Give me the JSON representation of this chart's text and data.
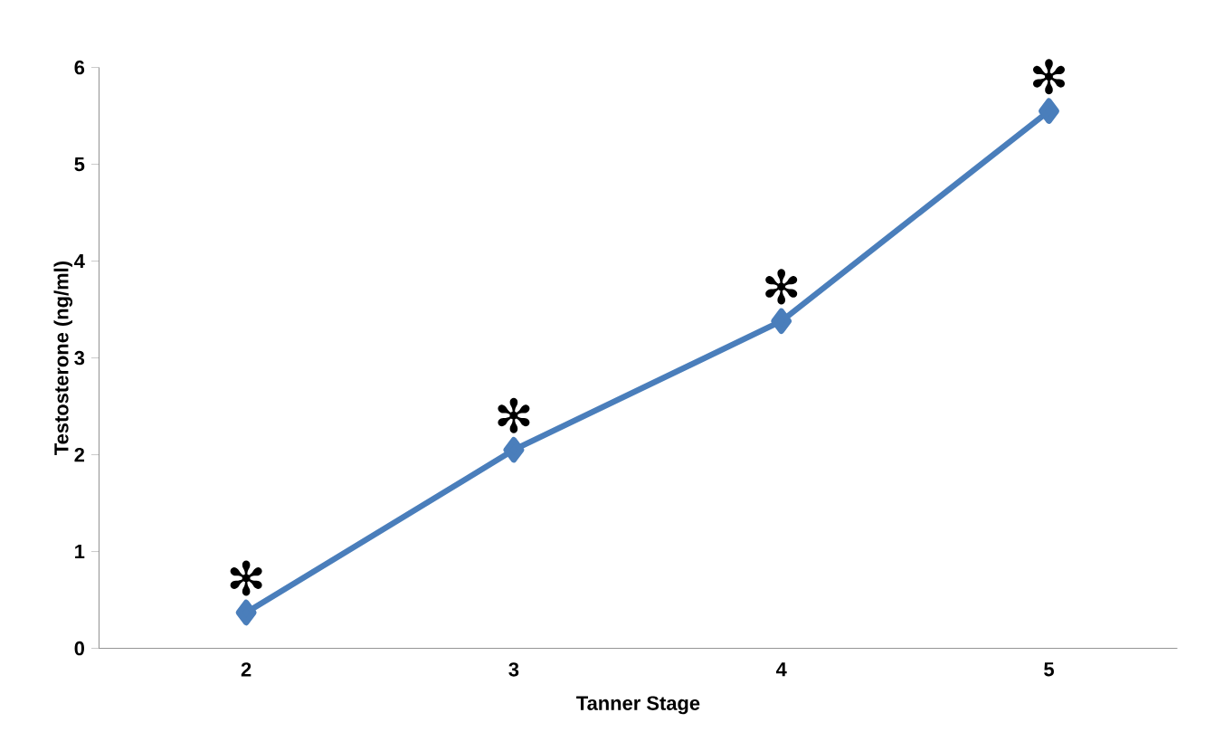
{
  "chart_data": {
    "type": "line",
    "xlabel": "Tanner Stage",
    "ylabel": "Testosterone (ng/ml)",
    "categories": [
      "2",
      "3",
      "4",
      "5"
    ],
    "series": [
      {
        "color": "#4a7ebb",
        "values": [
          0.37,
          2.05,
          3.38,
          5.55
        ]
      }
    ],
    "ylim": [
      0,
      6
    ],
    "yticks": [
      0,
      1,
      2,
      3,
      4,
      5,
      6
    ],
    "marker": "diamond",
    "line_style": "solid",
    "grid": false,
    "annotations": [
      {
        "text": "✻",
        "x": "2",
        "y": 0.37
      },
      {
        "text": "✻",
        "x": "3",
        "y": 2.05
      },
      {
        "text": "✻",
        "x": "4",
        "y": 3.38
      },
      {
        "text": "✻",
        "x": "5",
        "y": 5.55
      }
    ]
  }
}
